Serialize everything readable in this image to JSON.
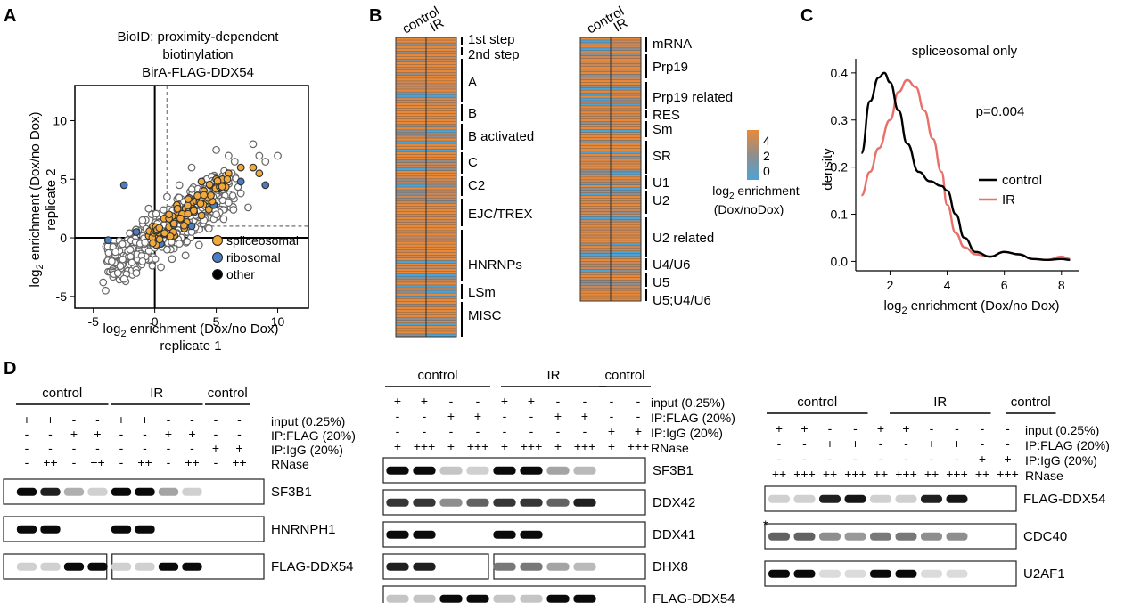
{
  "panels": {
    "A": {
      "label": "A",
      "title_lines": [
        "BioID: proximity-dependent",
        "biotinylation",
        "BirA-FLAG-DDX54"
      ],
      "xlabel": [
        "log",
        "2",
        " enrichment (Dox/no Dox)"
      ],
      "xlabel2": "replicate 1",
      "ylabel": [
        "log",
        "2",
        " enrichment (Dox/no Dox)"
      ],
      "ylabel2": "replicate 2",
      "legend": [
        {
          "name": "spliceosomal",
          "color": "#f2a93b"
        },
        {
          "name": "ribosomal",
          "color": "#4a7ec4"
        },
        {
          "name": "other",
          "color": "#000000"
        }
      ]
    },
    "B": {
      "label": "B",
      "columns": [
        "control",
        "IR"
      ],
      "left_groups": [
        "1st step",
        "2nd step",
        "A",
        "B",
        "B activated",
        "C",
        "C2",
        "EJC/TREX",
        "HNRNPs",
        "LSm",
        "MISC"
      ],
      "right_groups": [
        "mRNA",
        "Prp19",
        "Prp19 related",
        "RES",
        "Sm",
        "SR",
        "U1",
        "U2",
        "U2 related",
        "U4/U6",
        "U5",
        "U5;U4/U6"
      ],
      "legend_ticks": [
        "4",
        "2",
        "0"
      ],
      "legend_title": [
        "log",
        "2",
        " enrichment"
      ],
      "legend_title2": "(Dox/noDox)",
      "colors": {
        "high": "#e8893a",
        "mid": "#8e8e8e",
        "low": "#4ea3d6"
      }
    },
    "C": {
      "label": "C",
      "title": "spliceosomal only",
      "pvalue": "p=0.004",
      "ylabel": "density",
      "xlabel": [
        "log",
        "2",
        " enrichment (Dox/no Dox)"
      ],
      "legend": [
        {
          "name": "control",
          "color": "#000000"
        },
        {
          "name": "IR",
          "color": "#e8706a"
        }
      ]
    },
    "D": {
      "label": "D",
      "blot1": {
        "groups": [
          "control",
          "IR",
          "control"
        ],
        "rows": [
          {
            "label": "input (0.25%)",
            "signs": [
              "+",
              "+",
              "-",
              "-",
              "+",
              "+",
              "-",
              "-",
              "-",
              "-"
            ]
          },
          {
            "label": "IP:FLAG (20%)",
            "signs": [
              "-",
              "-",
              "+",
              "+",
              "-",
              "-",
              "+",
              "+",
              "-",
              "-"
            ]
          },
          {
            "label": "IP:IgG (20%)",
            "signs": [
              "-",
              "-",
              "-",
              "-",
              "-",
              "-",
              "-",
              "-",
              "+",
              "+"
            ]
          },
          {
            "label": "RNase",
            "signs": [
              "-",
              "++",
              "-",
              "++",
              "-",
              "++",
              "-",
              "++",
              "-",
              "++"
            ]
          }
        ],
        "bands": [
          "SF3B1",
          "HNRNPH1",
          "FLAG-DDX54"
        ]
      },
      "blot2": {
        "groups": [
          "control",
          "IR",
          "control"
        ],
        "rows": [
          {
            "label": "input (0.25%)",
            "signs": [
              "+",
              "+",
              "-",
              "-",
              "+",
              "+",
              "-",
              "-",
              "-",
              "-"
            ]
          },
          {
            "label": "IP:FLAG (20%)",
            "signs": [
              "-",
              "-",
              "+",
              "+",
              "-",
              "-",
              "+",
              "+",
              "-",
              "-"
            ]
          },
          {
            "label": "IP:IgG (20%)",
            "signs": [
              "-",
              "-",
              "-",
              "-",
              "-",
              "-",
              "-",
              "-",
              "+",
              "+"
            ]
          },
          {
            "label": "RNase",
            "signs": [
              "+",
              "+++",
              "+",
              "+++",
              "+",
              "+++",
              "+",
              "+++",
              "+",
              "+++"
            ]
          }
        ],
        "bands": [
          "SF3B1",
          "DDX42",
          "DDX41",
          "DHX8",
          "FLAG-DDX54"
        ]
      },
      "blot3": {
        "groups": [
          "control",
          "IR",
          "control"
        ],
        "rows": [
          {
            "label": "input (0.25%)",
            "signs": [
              "+",
              "+",
              "-",
              "-",
              "+",
              "+",
              "-",
              "-",
              "-",
              "-"
            ]
          },
          {
            "label": "IP:FLAG (20%)",
            "signs": [
              "-",
              "-",
              "+",
              "+",
              "-",
              "-",
              "+",
              "+",
              "-",
              "-"
            ]
          },
          {
            "label": "IP:IgG (20%)",
            "signs": [
              "-",
              "-",
              "-",
              "-",
              "-",
              "-",
              "-",
              "-",
              "+",
              "+"
            ]
          },
          {
            "label": "RNase",
            "signs": [
              "++",
              "+++",
              "++",
              "+++",
              "++",
              "+++",
              "++",
              "+++",
              "++",
              "+++"
            ]
          }
        ],
        "bands": [
          "FLAG-DDX54",
          "CDC40",
          "U2AF1"
        ],
        "asterisk": "*"
      }
    }
  },
  "chart_data": [
    {
      "type": "scatter",
      "panel": "A",
      "title": "BioID: proximity-dependent biotinylation BirA-FLAG-DDX54",
      "xlabel": "log2 enrichment (Dox/no Dox) replicate 1",
      "ylabel": "log2 enrichment (Dox/no Dox) replicate 2",
      "xlim": [
        -6.5,
        12.5
      ],
      "ylim": [
        -6,
        13
      ],
      "xticks": [
        -5,
        0,
        5,
        10
      ],
      "yticks": [
        -5,
        0,
        5,
        10
      ],
      "threshold_lines": {
        "x": 1,
        "y": 1
      },
      "series": [
        {
          "name": "spliceosomal",
          "points": [
            [
              1.5,
              1.2
            ],
            [
              2,
              2
            ],
            [
              2.5,
              2.5
            ],
            [
              3,
              3
            ],
            [
              3.5,
              3.5
            ],
            [
              4,
              4
            ],
            [
              4.5,
              4.5
            ],
            [
              5,
              5
            ],
            [
              5.5,
              5
            ],
            [
              6,
              5.5
            ],
            [
              7,
              6
            ],
            [
              8,
              6
            ],
            [
              8.5,
              5.5
            ],
            [
              1,
              0.5
            ],
            [
              0.8,
              0.3
            ],
            [
              1.2,
              1.8
            ],
            [
              2.2,
              1.5
            ],
            [
              3.2,
              2.2
            ],
            [
              2.8,
              3.4
            ],
            [
              1.8,
              2.8
            ],
            [
              4.2,
              3.2
            ],
            [
              5.2,
              4.2
            ],
            [
              3.8,
              4.8
            ],
            [
              2.4,
              0.8
            ],
            [
              1.6,
              0.2
            ]
          ]
        },
        {
          "name": "ribosomal",
          "points": [
            [
              -2.5,
              4.5
            ],
            [
              -3.8,
              -0.2
            ],
            [
              -1.5,
              0.5
            ],
            [
              2,
              2
            ],
            [
              4.8,
              2.8
            ],
            [
              9,
              4.5
            ],
            [
              7,
              4.8
            ],
            [
              3,
              1
            ],
            [
              0.5,
              -0.5
            ]
          ]
        },
        {
          "name": "other",
          "points": [
            [
              10,
              7
            ],
            [
              8,
              8
            ],
            [
              6,
              7
            ],
            [
              -3,
              -3
            ],
            [
              -4,
              -4.5
            ],
            [
              -2,
              -1
            ],
            [
              -1,
              -2
            ],
            [
              0,
              0
            ],
            [
              1,
              -1
            ],
            [
              3,
              0.5
            ],
            [
              5,
              2
            ],
            [
              6,
              3
            ],
            [
              7,
              3.8
            ],
            [
              4,
              1.5
            ],
            [
              -3.5,
              -2
            ],
            [
              -2.5,
              -3.5
            ],
            [
              -1.5,
              -3
            ],
            [
              0.5,
              -2.5
            ],
            [
              2,
              -0.5
            ],
            [
              2.5,
              -1.5
            ],
            [
              -1,
              1.5
            ],
            [
              -0.5,
              2.5
            ],
            [
              1,
              3.5
            ],
            [
              2,
              4.5
            ],
            [
              3,
              6
            ],
            [
              5,
              7.5
            ],
            [
              6.5,
              6.5
            ],
            [
              8.5,
              7
            ],
            [
              9,
              6.5
            ],
            [
              -4.2,
              -3.8
            ],
            [
              -3.2,
              -1.2
            ],
            [
              -2.8,
              -2.4
            ],
            [
              -0.8,
              -0.4
            ],
            [
              0.2,
              1.2
            ],
            [
              1.4,
              -1.8
            ],
            [
              3.6,
              -0.6
            ],
            [
              4.4,
              0.8
            ],
            [
              5.6,
              1.6
            ],
            [
              6.4,
              2.4
            ],
            [
              7.6,
              2.6
            ]
          ]
        }
      ]
    },
    {
      "type": "heatmap",
      "panel": "B",
      "columns": [
        "control",
        "IR"
      ],
      "scale_ticks": [
        0,
        2,
        4
      ]
    },
    {
      "type": "line",
      "panel": "C",
      "title": "spliceosomal only",
      "xlabel": "log2 enrichment (Dox/no Dox)",
      "ylabel": "density",
      "xlim": [
        0.8,
        8.6
      ],
      "ylim": [
        -0.02,
        0.43
      ],
      "xticks": [
        2,
        4,
        6,
        8
      ],
      "yticks": [
        0.0,
        0.1,
        0.2,
        0.3,
        0.4
      ],
      "series": [
        {
          "name": "control",
          "x": [
            1.0,
            1.3,
            1.6,
            1.8,
            2.0,
            2.3,
            2.6,
            3.0,
            3.4,
            3.8,
            4.0,
            4.3,
            4.6,
            5.0,
            5.5,
            6.0,
            6.5,
            7.0,
            7.5,
            8.0,
            8.3
          ],
          "y": [
            0.23,
            0.34,
            0.39,
            0.4,
            0.38,
            0.32,
            0.25,
            0.19,
            0.17,
            0.16,
            0.15,
            0.1,
            0.05,
            0.02,
            0.01,
            0.02,
            0.015,
            0.005,
            0.003,
            0.005,
            0.003
          ]
        },
        {
          "name": "IR",
          "x": [
            1.0,
            1.3,
            1.6,
            2.0,
            2.3,
            2.6,
            2.9,
            3.2,
            3.5,
            3.8,
            4.0,
            4.3,
            4.6,
            5.0,
            5.5,
            6.0,
            6.5,
            7.0,
            7.5,
            8.0,
            8.3
          ],
          "y": [
            0.14,
            0.19,
            0.24,
            0.3,
            0.36,
            0.385,
            0.37,
            0.32,
            0.26,
            0.19,
            0.12,
            0.06,
            0.03,
            0.015,
            0.01,
            0.02,
            0.015,
            0.005,
            0.003,
            0.01,
            0.005
          ]
        }
      ]
    }
  ]
}
